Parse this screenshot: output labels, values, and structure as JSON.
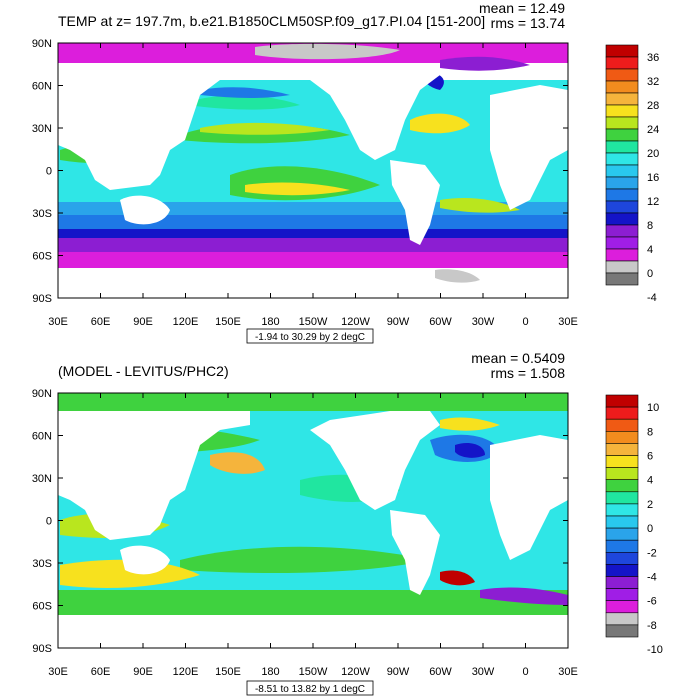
{
  "panels": [
    {
      "title": "TEMP at z= 197.7m, b.e21.B1850CLM50SP.f09_g17.PI.04 [151-200]",
      "mean_text": "mean = 12.49",
      "rms_text": "rms = 13.74",
      "range_text": "-1.94 to 30.29 by 2 degC",
      "colorbar": {
        "labels": [
          "36",
          "32",
          "28",
          "24",
          "20",
          "16",
          "12",
          "8",
          "4",
          "0",
          "-4"
        ],
        "colors": [
          "#c00000",
          "#ee1c1c",
          "#f05a14",
          "#f28c1e",
          "#f5b43c",
          "#f7e11e",
          "#b9e61e",
          "#3fd23f",
          "#20e6a0",
          "#2fe6e6",
          "#29c8ee",
          "#2aa4ea",
          "#1e78e6",
          "#1e46dc",
          "#1414c8",
          "#8c1ed2",
          "#a01ee6",
          "#dc1edc",
          "#c8c8c8",
          "#787878"
        ]
      }
    },
    {
      "title": "(MODEL - LEVITUS/PHC2)",
      "mean_text": "mean = 0.5409",
      "rms_text": "rms = 1.508",
      "range_text": "-8.51 to 13.82 by 1 degC",
      "colorbar": {
        "labels": [
          "10",
          "8",
          "6",
          "4",
          "2",
          "0",
          "-2",
          "-4",
          "-6",
          "-8",
          "-10"
        ],
        "colors": [
          "#c00000",
          "#ee1c1c",
          "#f05a14",
          "#f28c1e",
          "#f5b43c",
          "#f7e11e",
          "#b9e61e",
          "#3fd23f",
          "#20e6a0",
          "#2fe6e6",
          "#29c8ee",
          "#2aa4ea",
          "#1e78e6",
          "#1e46dc",
          "#1414c8",
          "#8c1ed2",
          "#a01ee6",
          "#dc1edc",
          "#c8c8c8",
          "#787878"
        ]
      }
    }
  ],
  "axes": {
    "lat_labels": [
      "90N",
      "60N",
      "30N",
      "0",
      "30S",
      "60S",
      "90S"
    ],
    "lon_labels": [
      "30E",
      "60E",
      "90E",
      "120E",
      "150E",
      "180",
      "150W",
      "120W",
      "90W",
      "60W",
      "30W",
      "0",
      "30E"
    ]
  }
}
